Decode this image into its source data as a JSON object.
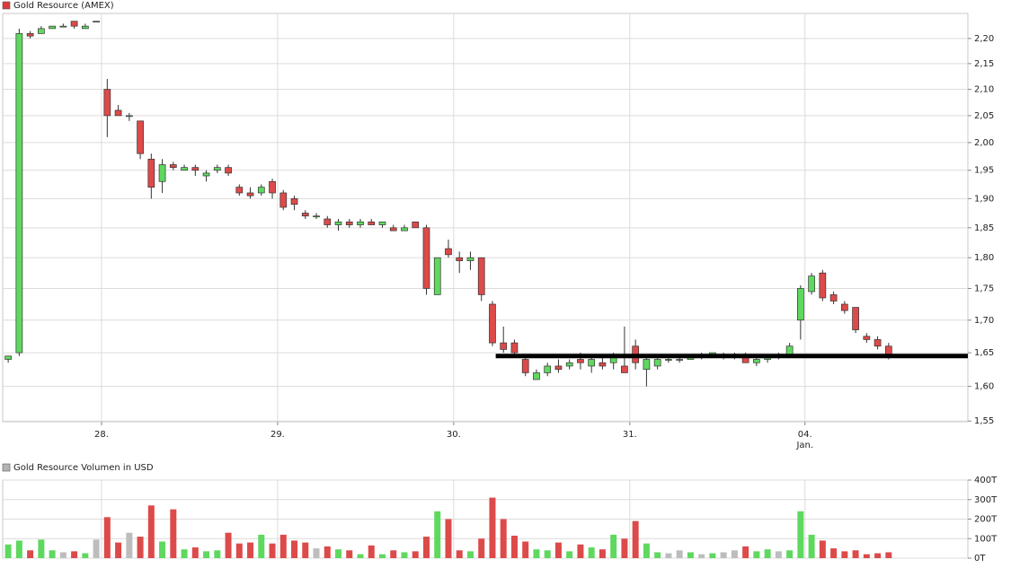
{
  "chart_data": [
    {
      "type": "candlestick",
      "legend": {
        "label": "Gold Resource (AMEX)",
        "color": "#dd3b3b"
      },
      "up_color": "#5fd85f",
      "down_color": "#dd4a4a",
      "log_scale": true,
      "grid": true,
      "x": [
        0,
        1,
        2,
        3,
        4,
        5,
        6,
        7,
        8,
        9,
        10,
        11,
        12,
        13,
        14,
        15,
        16,
        17,
        18,
        19,
        20,
        21,
        22,
        23,
        24,
        25,
        26,
        27,
        28,
        29,
        30,
        31,
        32,
        33,
        34,
        35,
        36,
        37,
        38,
        39,
        40,
        41,
        42,
        43,
        44,
        45,
        46,
        47,
        48,
        49,
        50,
        51,
        52,
        53,
        54,
        55,
        56,
        57,
        58,
        59,
        60,
        61,
        62,
        63,
        64,
        65,
        66,
        67,
        68,
        69,
        70,
        71,
        72,
        73,
        74,
        75,
        76,
        77,
        78,
        79,
        80
      ],
      "open": [
        1.64,
        1.65,
        2.21,
        2.21,
        2.22,
        2.225,
        2.235,
        2.22,
        2.235,
        2.1,
        2.06,
        2.05,
        2.04,
        1.97,
        1.93,
        1.96,
        1.95,
        1.955,
        1.94,
        1.95,
        1.955,
        1.92,
        1.91,
        1.91,
        1.93,
        1.91,
        1.9,
        1.875,
        1.87,
        1.865,
        1.855,
        1.86,
        1.855,
        1.86,
        1.855,
        1.85,
        1.845,
        1.86,
        1.85,
        1.74,
        1.815,
        1.8,
        1.795,
        1.8,
        1.725,
        1.665,
        1.665,
        1.64,
        1.61,
        1.62,
        1.63,
        1.63,
        1.64,
        1.63,
        1.635,
        1.635,
        1.63,
        1.66,
        1.625,
        1.63,
        1.64,
        1.64,
        1.64,
        1.645,
        1.645,
        1.645,
        1.645,
        1.645,
        1.635,
        1.64,
        1.645,
        1.645,
        1.7,
        1.745,
        1.775,
        1.74,
        1.725,
        1.72,
        1.675,
        1.67,
        1.66
      ],
      "high": [
        1.645,
        2.22,
        2.215,
        2.225,
        2.225,
        2.23,
        2.235,
        2.23,
        2.235,
        2.12,
        2.07,
        2.055,
        2.04,
        1.98,
        1.97,
        1.965,
        1.96,
        1.96,
        1.95,
        1.96,
        1.96,
        1.925,
        1.92,
        1.925,
        1.935,
        1.915,
        1.905,
        1.88,
        1.875,
        1.87,
        1.865,
        1.865,
        1.865,
        1.865,
        1.86,
        1.855,
        1.855,
        1.86,
        1.855,
        1.8,
        1.83,
        1.81,
        1.81,
        1.8,
        1.73,
        1.69,
        1.67,
        1.645,
        1.625,
        1.635,
        1.64,
        1.64,
        1.65,
        1.645,
        1.645,
        1.65,
        1.69,
        1.67,
        1.645,
        1.645,
        1.645,
        1.645,
        1.645,
        1.65,
        1.65,
        1.65,
        1.65,
        1.65,
        1.645,
        1.645,
        1.65,
        1.665,
        1.755,
        1.775,
        1.78,
        1.745,
        1.73,
        1.72,
        1.68,
        1.675,
        1.665
      ],
      "low": [
        1.635,
        1.645,
        2.2,
        2.21,
        2.22,
        2.225,
        2.22,
        2.22,
        2.235,
        2.01,
        2.05,
        2.04,
        1.97,
        1.9,
        1.91,
        1.95,
        1.95,
        1.94,
        1.93,
        1.945,
        1.94,
        1.905,
        1.9,
        1.905,
        1.9,
        1.88,
        1.88,
        1.865,
        1.865,
        1.85,
        1.845,
        1.85,
        1.85,
        1.855,
        1.85,
        1.845,
        1.845,
        1.85,
        1.74,
        1.74,
        1.8,
        1.775,
        1.78,
        1.73,
        1.66,
        1.65,
        1.645,
        1.615,
        1.61,
        1.615,
        1.62,
        1.625,
        1.625,
        1.62,
        1.625,
        1.625,
        1.625,
        1.625,
        1.6,
        1.625,
        1.635,
        1.635,
        1.64,
        1.64,
        1.645,
        1.64,
        1.64,
        1.635,
        1.63,
        1.635,
        1.64,
        1.645,
        1.67,
        1.74,
        1.73,
        1.725,
        1.71,
        1.68,
        1.665,
        1.655,
        1.64
      ],
      "close": [
        1.645,
        2.21,
        2.205,
        2.22,
        2.225,
        2.225,
        2.225,
        2.225,
        2.235,
        2.05,
        2.05,
        2.05,
        1.98,
        1.92,
        1.96,
        1.955,
        1.955,
        1.95,
        1.945,
        1.955,
        1.945,
        1.91,
        1.905,
        1.92,
        1.91,
        1.885,
        1.89,
        1.87,
        1.87,
        1.855,
        1.86,
        1.855,
        1.86,
        1.855,
        1.86,
        1.845,
        1.85,
        1.85,
        1.75,
        1.8,
        1.805,
        1.795,
        1.8,
        1.74,
        1.665,
        1.655,
        1.65,
        1.62,
        1.62,
        1.63,
        1.625,
        1.635,
        1.635,
        1.64,
        1.63,
        1.645,
        1.62,
        1.635,
        1.64,
        1.64,
        1.64,
        1.64,
        1.645,
        1.645,
        1.65,
        1.645,
        1.645,
        1.635,
        1.64,
        1.645,
        1.645,
        1.66,
        1.75,
        1.77,
        1.735,
        1.73,
        1.715,
        1.685,
        1.67,
        1.66,
        1.645
      ],
      "hline": {
        "value": 1.645,
        "x_start": 44.3,
        "color": "#000000"
      },
      "xlim": [
        -0.5,
        87.2
      ],
      "ylim": [
        1.549,
        2.251
      ],
      "xticks": [
        {
          "value": 8.48,
          "label": "28."
        },
        {
          "value": 24.48,
          "label": "29."
        },
        {
          "value": 40.48,
          "label": "30."
        },
        {
          "value": 56.48,
          "label": "31."
        },
        {
          "value": 72.4,
          "label": "04.",
          "sublabel": "Jan."
        }
      ],
      "yticks": [
        {
          "value": 1.55,
          "label": "1,55"
        },
        {
          "value": 1.6,
          "label": "1,60"
        },
        {
          "value": 1.65,
          "label": "1,65"
        },
        {
          "value": 1.7,
          "label": "1,70"
        },
        {
          "value": 1.75,
          "label": "1,75"
        },
        {
          "value": 1.8,
          "label": "1,80"
        },
        {
          "value": 1.85,
          "label": "1,85"
        },
        {
          "value": 1.9,
          "label": "1,90"
        },
        {
          "value": 1.95,
          "label": "1,95"
        },
        {
          "value": 2.0,
          "label": "2,00"
        },
        {
          "value": 2.05,
          "label": "2,05"
        },
        {
          "value": 2.1,
          "label": "2,10"
        },
        {
          "value": 2.15,
          "label": "2,15"
        },
        {
          "value": 2.2,
          "label": "2,20"
        }
      ]
    },
    {
      "type": "bar",
      "legend": {
        "label": "Gold Resource Volumen in USD",
        "color": "#b4b4b4"
      },
      "flat_color": "#bdbdbd",
      "values": [
        70000,
        90000,
        40000,
        95000,
        40000,
        30000,
        35000,
        25000,
        95000,
        210000,
        80000,
        130000,
        110000,
        270000,
        85000,
        250000,
        45000,
        55000,
        35000,
        40000,
        130000,
        75000,
        80000,
        120000,
        75000,
        120000,
        90000,
        80000,
        50000,
        60000,
        45000,
        40000,
        20000,
        65000,
        20000,
        40000,
        30000,
        35000,
        110000,
        240000,
        200000,
        40000,
        35000,
        100000,
        310000,
        200000,
        115000,
        85000,
        45000,
        40000,
        80000,
        35000,
        70000,
        55000,
        45000,
        120000,
        100000,
        190000,
        75000,
        30000,
        25000,
        40000,
        30000,
        20000,
        25000,
        30000,
        40000,
        60000,
        35000,
        45000,
        35000,
        40000,
        240000,
        120000,
        90000,
        50000,
        35000,
        40000,
        20000,
        25000,
        30000
      ],
      "ylim": [
        0,
        400000
      ],
      "yticks": [
        {
          "value": 0,
          "label": "0T"
        },
        {
          "value": 100000,
          "label": "100T"
        },
        {
          "value": 200000,
          "label": "200T"
        },
        {
          "value": 300000,
          "label": "300T"
        },
        {
          "value": 400000,
          "label": "400T"
        }
      ]
    }
  ]
}
